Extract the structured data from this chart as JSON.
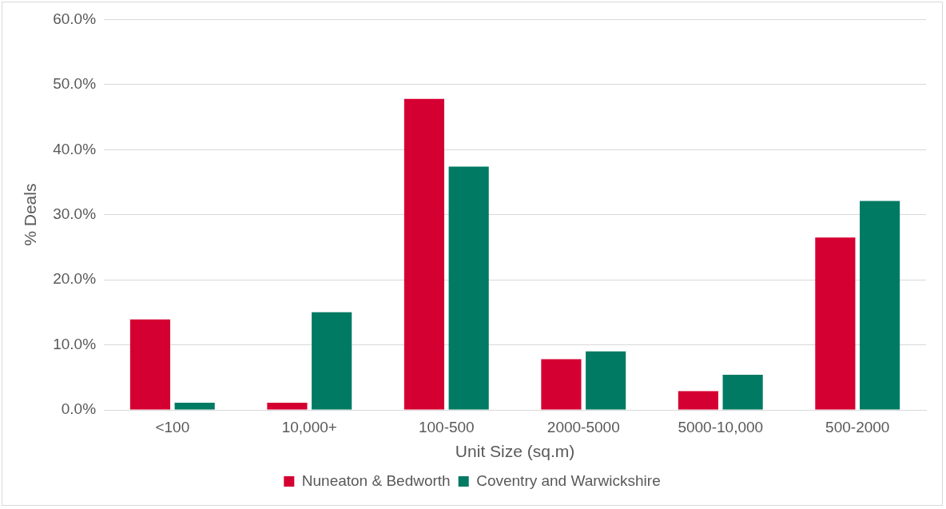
{
  "chart_data": {
    "type": "bar",
    "xlabel": "Unit Size (sq.m)",
    "ylabel": "% Deals",
    "categories": [
      "<100",
      "10,000+",
      "100-500",
      "2000-5000",
      "5000-10,000",
      "500-2000"
    ],
    "series": [
      {
        "name": "Nuneaton & Bedworth",
        "color": "#d50032",
        "values": [
          13.9,
          1.1,
          47.8,
          7.8,
          2.9,
          26.5
        ]
      },
      {
        "name": "Coventry and Warwickshire",
        "color": "#007a63",
        "values": [
          1.1,
          15.0,
          37.4,
          9.0,
          5.4,
          32.1
        ]
      }
    ],
    "ylim": [
      0,
      60
    ],
    "yticks": [
      {
        "value": 0,
        "label": "0.0%"
      },
      {
        "value": 10,
        "label": "10.0%"
      },
      {
        "value": 20,
        "label": "20.0%"
      },
      {
        "value": 30,
        "label": "30.0%"
      },
      {
        "value": 40,
        "label": "40.0%"
      },
      {
        "value": 50,
        "label": "50.0%"
      },
      {
        "value": 60,
        "label": "60.0%"
      }
    ],
    "grid": "y",
    "legend": "bottom"
  }
}
